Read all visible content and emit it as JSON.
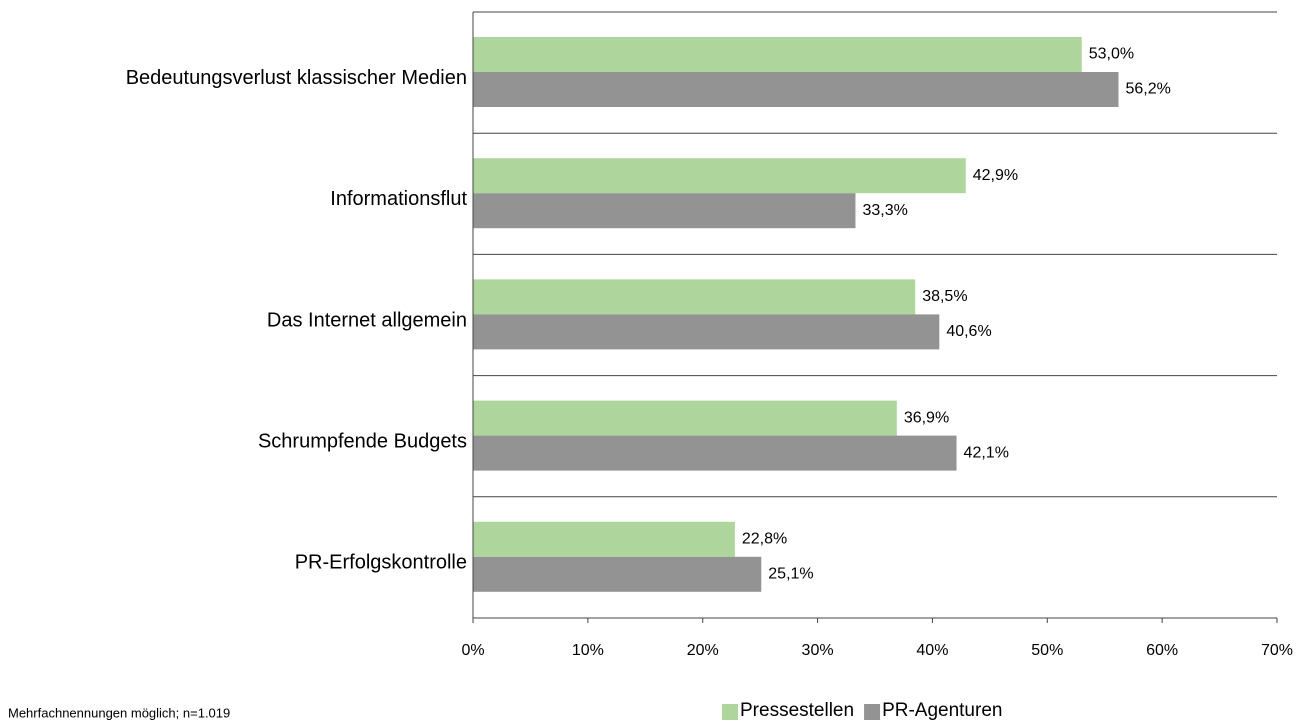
{
  "chart_data": {
    "type": "bar",
    "orientation": "horizontal",
    "categories": [
      "Bedeutungsverlust klassischer Medien",
      "Informationsflut",
      "Das Internet allgemein",
      "Schrumpfende Budgets",
      "PR-Erfolgskontrolle"
    ],
    "series": [
      {
        "name": "Pressestellen",
        "color": "#aed69c",
        "values": [
          53.0,
          42.9,
          38.5,
          36.9,
          22.8
        ],
        "value_labels": [
          "53,0%",
          "42,9%",
          "38,5%",
          "36,9%",
          "22,8%"
        ]
      },
      {
        "name": "PR-Agenturen",
        "color": "#939393",
        "values": [
          56.2,
          33.3,
          40.6,
          42.1,
          25.1
        ],
        "value_labels": [
          "56,2%",
          "33,3%",
          "40,6%",
          "42,1%",
          "25,1%"
        ]
      }
    ],
    "xlim": [
      0,
      70
    ],
    "xticks": [
      {
        "value": 0,
        "label": "0%"
      },
      {
        "value": 10,
        "label": "10%"
      },
      {
        "value": 20,
        "label": "20%"
      },
      {
        "value": 30,
        "label": "30%"
      },
      {
        "value": 40,
        "label": "40%"
      },
      {
        "value": 50,
        "label": "50%"
      },
      {
        "value": 60,
        "label": "60%"
      },
      {
        "value": 70,
        "label": "70%"
      }
    ],
    "legend": "bottom",
    "note": "Mehrfachnennungen möglich; n=1.019"
  }
}
